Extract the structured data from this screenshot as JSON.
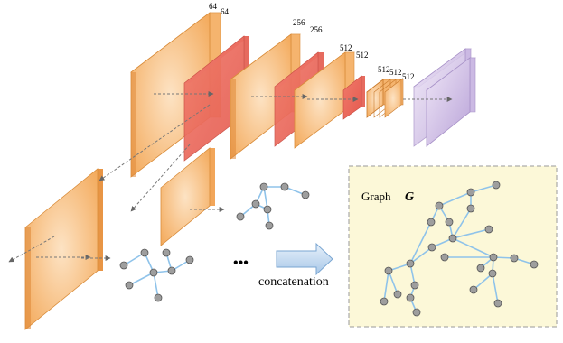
{
  "layer_labels": [
    "64",
    "64",
    "256",
    "256",
    "512",
    "512",
    "512",
    "512",
    "512"
  ],
  "graph_label": "Graph",
  "graph_symbol": "G",
  "concat_label": "concatenation",
  "ellipsis": "•••",
  "colors": {
    "conv": "#f6b26b",
    "pool": "#ea6b5f",
    "fc": "#c9b8e3",
    "graph_edge": "#8fc3ea",
    "graph_node": "#9e9e9e",
    "graph_panel": "#fcf8d8",
    "arrow_fill": "#c8ddf1"
  }
}
